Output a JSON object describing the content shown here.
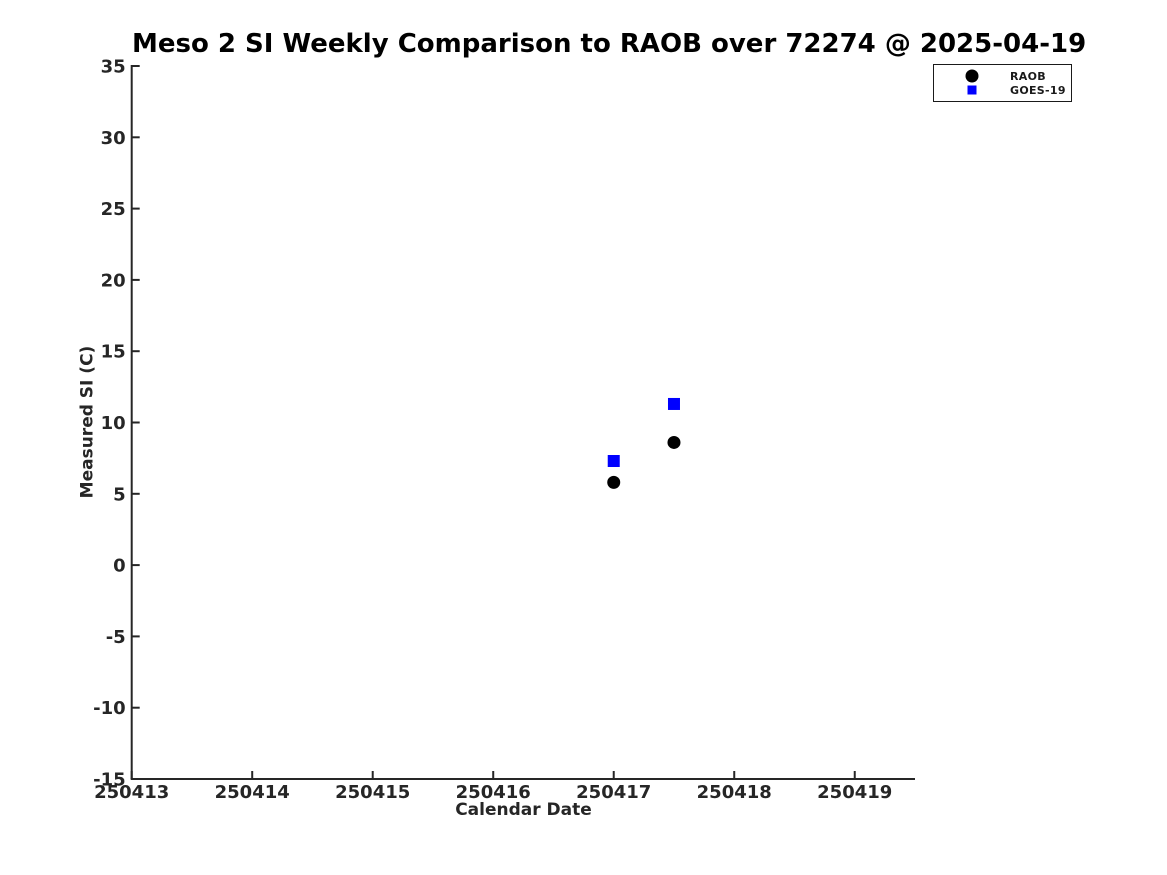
{
  "chart_data": {
    "type": "scatter",
    "title": "Meso 2 SI Weekly Comparison to RAOB over 72274 @ 2025-04-19",
    "xlabel": "Calendar Date",
    "ylabel": "Measured SI (C)",
    "xlim": [
      250413,
      250419.5
    ],
    "ylim": [
      -15,
      35
    ],
    "x_ticks": [
      250413,
      250414,
      250415,
      250416,
      250417,
      250418,
      250419
    ],
    "y_ticks": [
      -15,
      -10,
      -5,
      0,
      5,
      10,
      15,
      20,
      25,
      30,
      35
    ],
    "grid": false,
    "box": false,
    "legend_position": "top-right",
    "axis_color": "#262626",
    "title_color": "#000000",
    "background_color": "#ffffff",
    "series": [
      {
        "name": "RAOB",
        "marker": "circle",
        "color": "#000000",
        "points": [
          [
            250417.0,
            5.8
          ],
          [
            250417.5,
            8.6
          ]
        ]
      },
      {
        "name": "GOES-19",
        "marker": "square",
        "color": "#0000ff",
        "points": [
          [
            250417.0,
            7.3
          ],
          [
            250417.5,
            11.3
          ]
        ]
      }
    ]
  }
}
